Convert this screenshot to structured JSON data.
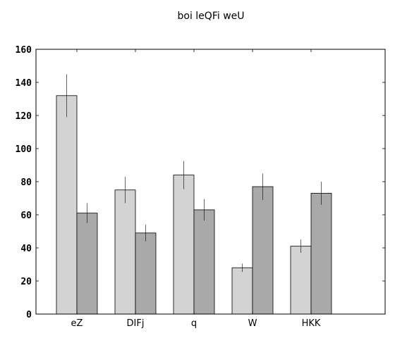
{
  "chart_data": {
    "type": "bar",
    "title": "boi leQFi weU",
    "xlabel": "",
    "ylabel": "",
    "categories": [
      "eZ",
      "DIFj",
      "q",
      "W",
      "HKK"
    ],
    "series": [
      {
        "color": "#d3d3d3",
        "values": [
          132,
          75,
          84,
          28,
          41
        ],
        "errors": [
          13,
          8,
          8.5,
          2.5,
          4
        ]
      },
      {
        "color": "#a9a9a9",
        "values": [
          61,
          49,
          63,
          77,
          73
        ],
        "errors": [
          6,
          5,
          6.5,
          8,
          7
        ]
      }
    ],
    "ylim": [
      0,
      160
    ],
    "yticks": [
      0,
      20,
      40,
      60,
      80,
      100,
      120,
      140,
      160
    ],
    "grid": false,
    "legend": "none"
  }
}
